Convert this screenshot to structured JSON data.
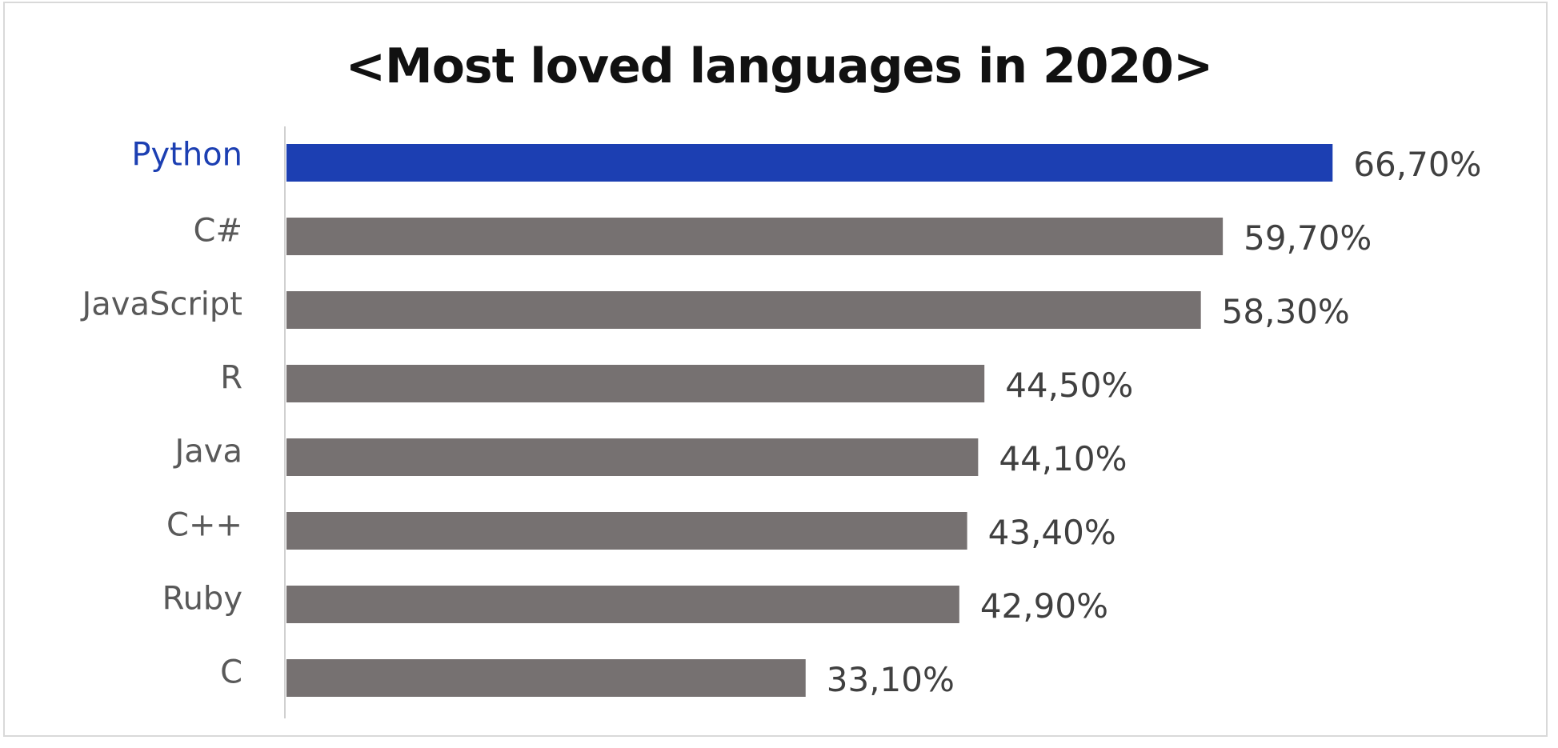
{
  "chart_data": {
    "type": "bar",
    "orientation": "horizontal",
    "title": "<Most loved languages in 2020>",
    "categories": [
      "Python",
      "C#",
      "JavaScript",
      "R",
      "Java",
      "C++",
      "Ruby",
      "C"
    ],
    "values": [
      66.7,
      59.7,
      58.3,
      44.5,
      44.1,
      43.4,
      42.9,
      33.1
    ],
    "value_labels": [
      "66,70%",
      "59,70%",
      "58,30%",
      "44,50%",
      "44,10%",
      "43,40%",
      "42,90%",
      "33,10%"
    ],
    "unit": "%",
    "xlim": [
      0,
      70
    ],
    "grid": false,
    "legend": "none",
    "highlight": "Python",
    "colors": {
      "highlight_bar": "#1c3fb2",
      "highlight_label": "#1c3fb2",
      "bar": "#767171",
      "label": "#595959",
      "value_label": "#404040",
      "axis": "#d0d0d0"
    }
  }
}
